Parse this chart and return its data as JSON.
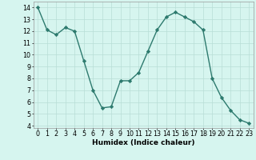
{
  "x": [
    0,
    1,
    2,
    3,
    4,
    5,
    6,
    7,
    8,
    9,
    10,
    11,
    12,
    13,
    14,
    15,
    16,
    17,
    18,
    19,
    20,
    21,
    22,
    23
  ],
  "y": [
    14,
    12.1,
    11.7,
    12.3,
    12.0,
    9.5,
    7.0,
    5.5,
    5.6,
    7.8,
    7.8,
    8.5,
    10.3,
    12.1,
    13.2,
    13.6,
    13.2,
    12.8,
    12.1,
    8.0,
    6.4,
    5.3,
    4.5,
    4.2
  ],
  "line_color": "#2d7a6e",
  "marker": "D",
  "marker_size": 2.2,
  "linewidth": 1.0,
  "bg_color": "#d6f5ef",
  "grid_color": "#b8ddd6",
  "xlabel": "Humidex (Indice chaleur)",
  "xlim": [
    -0.5,
    23.5
  ],
  "ylim": [
    3.8,
    14.5
  ],
  "yticks": [
    4,
    5,
    6,
    7,
    8,
    9,
    10,
    11,
    12,
    13,
    14
  ],
  "xticks": [
    0,
    1,
    2,
    3,
    4,
    5,
    6,
    7,
    8,
    9,
    10,
    11,
    12,
    13,
    14,
    15,
    16,
    17,
    18,
    19,
    20,
    21,
    22,
    23
  ],
  "xlabel_fontsize": 6.5,
  "tick_fontsize": 5.8
}
